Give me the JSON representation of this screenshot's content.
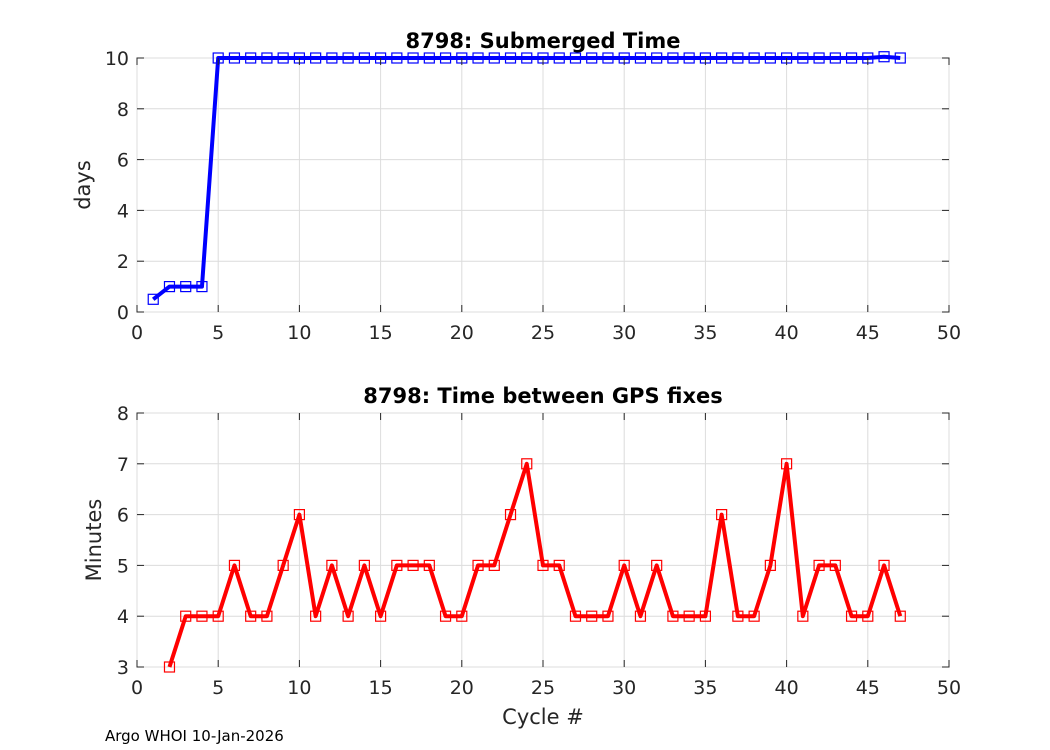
{
  "chart_data": [
    {
      "type": "line",
      "title": "8798: Submerged Time",
      "xlabel": "",
      "ylabel": "days",
      "xlim": [
        0,
        50
      ],
      "ylim": [
        0,
        10
      ],
      "xticks": [
        0,
        5,
        10,
        15,
        20,
        25,
        30,
        35,
        40,
        45,
        50
      ],
      "yticks": [
        0,
        2,
        4,
        6,
        8,
        10
      ],
      "grid": true,
      "color": "#0000ff",
      "marker": "square",
      "x": [
        1,
        2,
        3,
        4,
        5,
        6,
        7,
        8,
        9,
        10,
        11,
        12,
        13,
        14,
        15,
        16,
        17,
        18,
        19,
        20,
        21,
        22,
        23,
        24,
        25,
        26,
        27,
        28,
        29,
        30,
        31,
        32,
        33,
        34,
        35,
        36,
        37,
        38,
        39,
        40,
        41,
        42,
        43,
        44,
        45,
        46,
        47
      ],
      "y": [
        0.5,
        1,
        1,
        1,
        10,
        10,
        10,
        10,
        10,
        10,
        10,
        10,
        10,
        10,
        10,
        10,
        10,
        10,
        10,
        10,
        10,
        10,
        10,
        10,
        10,
        10,
        10,
        10,
        10,
        10,
        10,
        10,
        10,
        10,
        10,
        10,
        10,
        10,
        10,
        10,
        10,
        10,
        10,
        10,
        10,
        10.05,
        10
      ]
    },
    {
      "type": "line",
      "title": "8798: Time between GPS fixes",
      "xlabel": "Cycle #",
      "ylabel": "Minutes",
      "xlim": [
        0,
        50
      ],
      "ylim": [
        3,
        8
      ],
      "xticks": [
        0,
        5,
        10,
        15,
        20,
        25,
        30,
        35,
        40,
        45,
        50
      ],
      "yticks": [
        3,
        4,
        5,
        6,
        7,
        8
      ],
      "grid": true,
      "color": "#ff0000",
      "marker": "square",
      "x": [
        2,
        3,
        4,
        5,
        6,
        7,
        8,
        9,
        10,
        11,
        12,
        13,
        14,
        15,
        16,
        17,
        18,
        19,
        20,
        21,
        22,
        23,
        24,
        25,
        26,
        27,
        28,
        29,
        30,
        31,
        32,
        33,
        34,
        35,
        36,
        37,
        38,
        39,
        40,
        41,
        42,
        43,
        44,
        45,
        46,
        47
      ],
      "y": [
        3,
        4,
        4,
        4,
        5,
        4,
        4,
        5,
        6,
        4,
        5,
        4,
        5,
        4,
        5,
        5,
        5,
        4,
        4,
        5,
        5,
        6,
        7,
        5,
        5,
        4,
        4,
        4,
        5,
        4,
        5,
        4,
        4,
        4,
        6,
        4,
        4,
        5,
        7,
        4,
        5,
        5,
        4,
        4,
        5,
        4
      ]
    }
  ],
  "footer": "Argo WHOI 10-Jan-2026"
}
